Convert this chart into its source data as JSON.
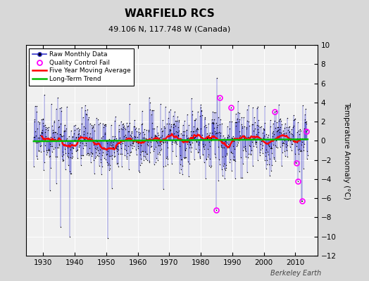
{
  "title": "WARFIELD RCS",
  "subtitle": "49.106 N, 117.748 W (Canada)",
  "ylabel": "Temperature Anomaly (°C)",
  "watermark": "Berkeley Earth",
  "xlim": [
    1924.5,
    2017
  ],
  "ylim": [
    -12,
    10
  ],
  "yticks": [
    -12,
    -10,
    -8,
    -6,
    -4,
    -2,
    0,
    2,
    4,
    6,
    8,
    10
  ],
  "xticks": [
    1930,
    1940,
    1950,
    1960,
    1970,
    1980,
    1990,
    2000,
    2010
  ],
  "bg_color": "#d8d8d8",
  "plot_bg_color": "#f0f0f0",
  "grid_color": "#ffffff",
  "raw_line_color": "#3333cc",
  "raw_dot_color": "#000000",
  "ma_color": "#ff0000",
  "trend_color": "#00bb00",
  "qc_color": "#ff00ff",
  "seed": 17,
  "n_months": 1044,
  "start_year": 1927.0
}
